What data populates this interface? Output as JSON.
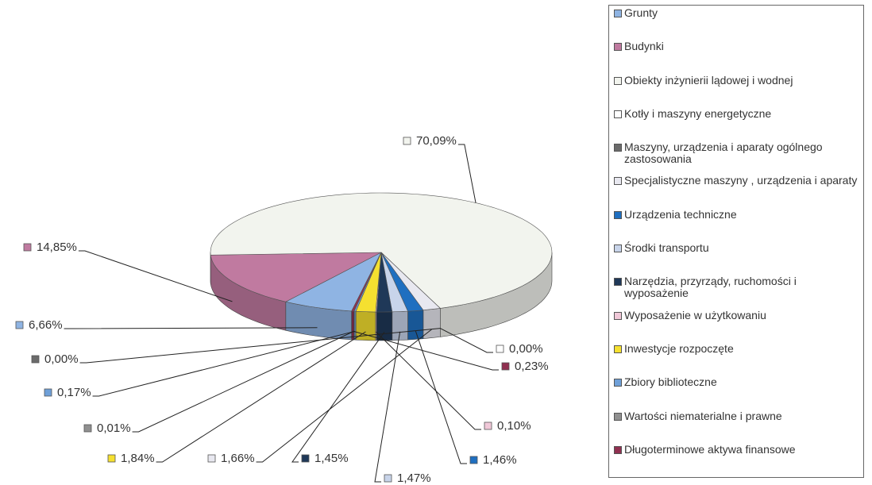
{
  "chart_data": {
    "type": "pie",
    "categories": [
      "Grunty",
      "Budynki",
      "Obiekty inżynierii lądowej i wodnej",
      "Kotły i maszyny energetyczne",
      "Maszyny, urządzenia i aparaty ogólnego zastosowania",
      "Specjalistyczne maszyny , urządzenia i aparaty",
      "Urządzenia techniczne",
      "Środki transportu",
      "Narzędzia, przyrządy, ruchomości i wyposażenie",
      "Wyposażenie w użytkowaniu",
      "Inwestycje rozpoczęte",
      "Zbiory biblioteczne",
      "Wartości niematerialne i prawne",
      "Długoterminowe aktywa finansowe"
    ],
    "values": [
      6.66,
      14.85,
      70.09,
      0.0,
      0.0,
      1.66,
      1.46,
      1.47,
      1.45,
      0.1,
      1.84,
      0.17,
      0.01,
      0.23
    ],
    "value_labels": [
      "6,66%",
      "14,85%",
      "70,09%",
      "0,00%",
      "0,00%",
      "1,66%",
      "1,46%",
      "1,47%",
      "1,45%",
      "0,10%",
      "1,84%",
      "0,17%",
      "0,01%",
      "0,23%"
    ],
    "colors": [
      "#8fb4e3",
      "#c07aa0",
      "#f2f4ee",
      "#ffffff",
      "#6b6b6b",
      "#e8e8f0",
      "#1f6fc0",
      "#c8d4ea",
      "#1f3858",
      "#f0c8d8",
      "#f5e030",
      "#6fa0d8",
      "#909090",
      "#903050"
    ]
  }
}
